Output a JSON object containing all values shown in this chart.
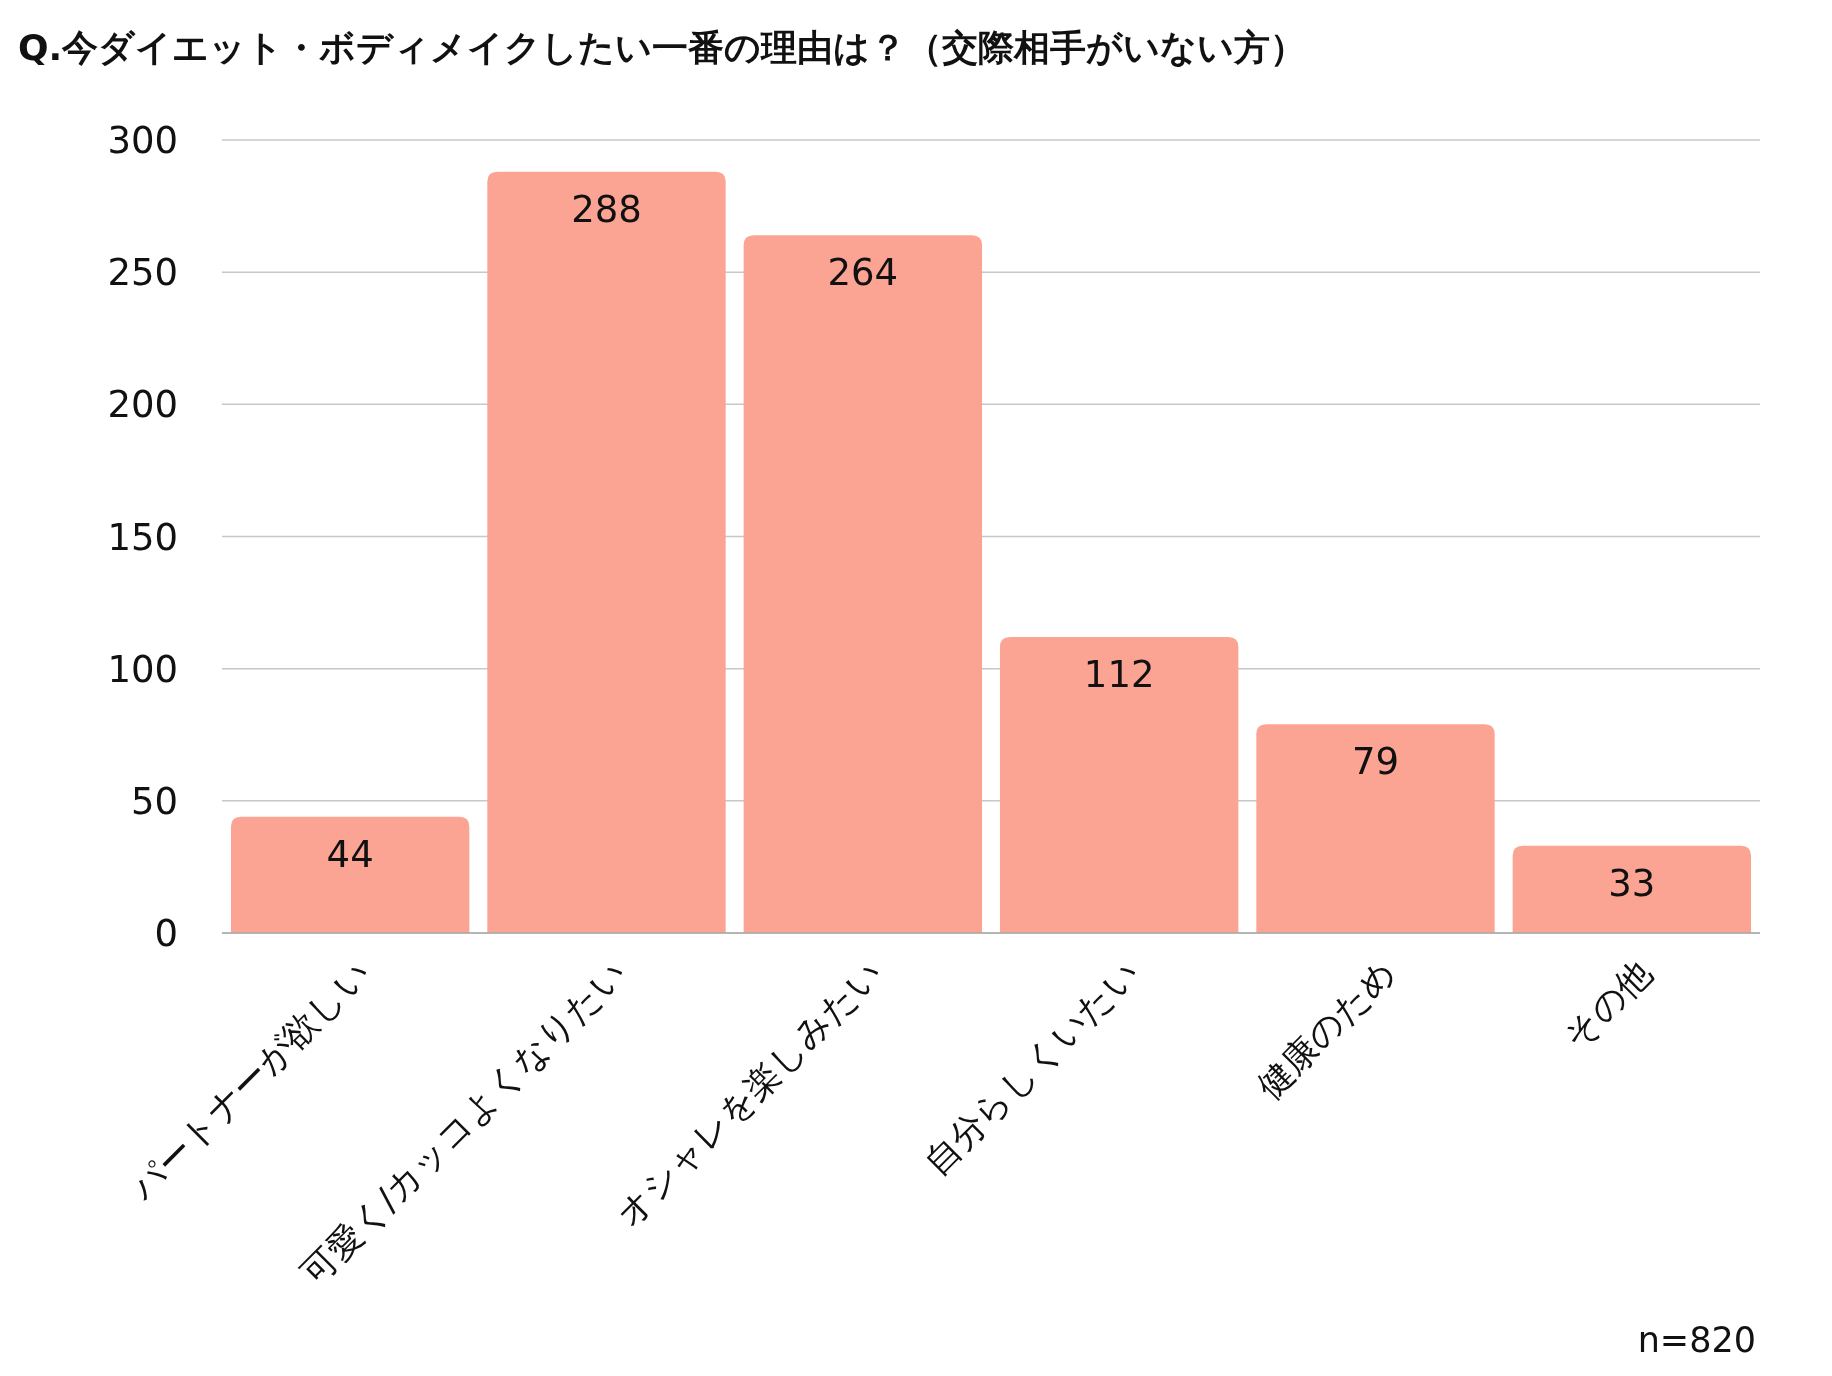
{
  "chart_data": {
    "type": "bar",
    "title": "Q.今ダイエット・ボディメイクしたい一番の理由は？（交際相手がいない方）",
    "categories": [
      "パートナーが欲しい",
      "可愛く/カッコよくなりたい",
      "オシャレを楽しみたい",
      "自分らしくいたい",
      "健康のため",
      "その他"
    ],
    "values": [
      44,
      288,
      264,
      112,
      79,
      33
    ],
    "color": "#fca493",
    "ylim": [
      0,
      300
    ],
    "yticks": [
      0,
      50,
      100,
      150,
      200,
      250,
      300
    ],
    "grid": "y",
    "data_labels": true,
    "annotations": [
      "n=820"
    ]
  }
}
